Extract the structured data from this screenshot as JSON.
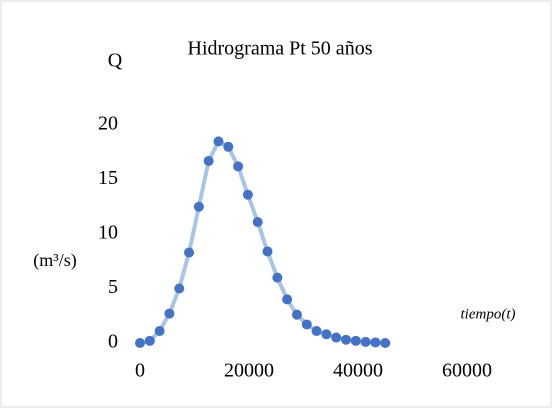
{
  "chart_data": {
    "type": "line",
    "title": "Hidrograma Pt  50 años",
    "y_label_top": "Q",
    "y_label": "(m³/s)",
    "x_label": "tiempo(t)",
    "x": [
      0,
      1800,
      3600,
      5400,
      7200,
      9000,
      10800,
      12600,
      14400,
      16200,
      18000,
      19800,
      21600,
      23400,
      25200,
      27000,
      28800,
      30600,
      32400,
      34200,
      36000,
      37800,
      39600,
      41400,
      43200,
      45000
    ],
    "series": [
      {
        "name": "Q",
        "color": "#4472c4",
        "line_color": "#a9c4eb",
        "values": [
          0,
          0.2,
          1.1,
          2.7,
          5,
          8.3,
          12.5,
          16.7,
          18.5,
          18,
          16.2,
          13.6,
          11.1,
          8.4,
          6,
          4,
          2.6,
          1.7,
          1.1,
          0.8,
          0.5,
          0.3,
          0.2,
          0.1,
          0.05,
          0
        ]
      }
    ],
    "xlim": [
      0,
      60000
    ],
    "xticks": [
      0,
      20000,
      40000,
      60000
    ],
    "ylim": [
      0,
      20
    ],
    "yticks": [
      0,
      5,
      10,
      15,
      20
    ],
    "grid": false
  }
}
